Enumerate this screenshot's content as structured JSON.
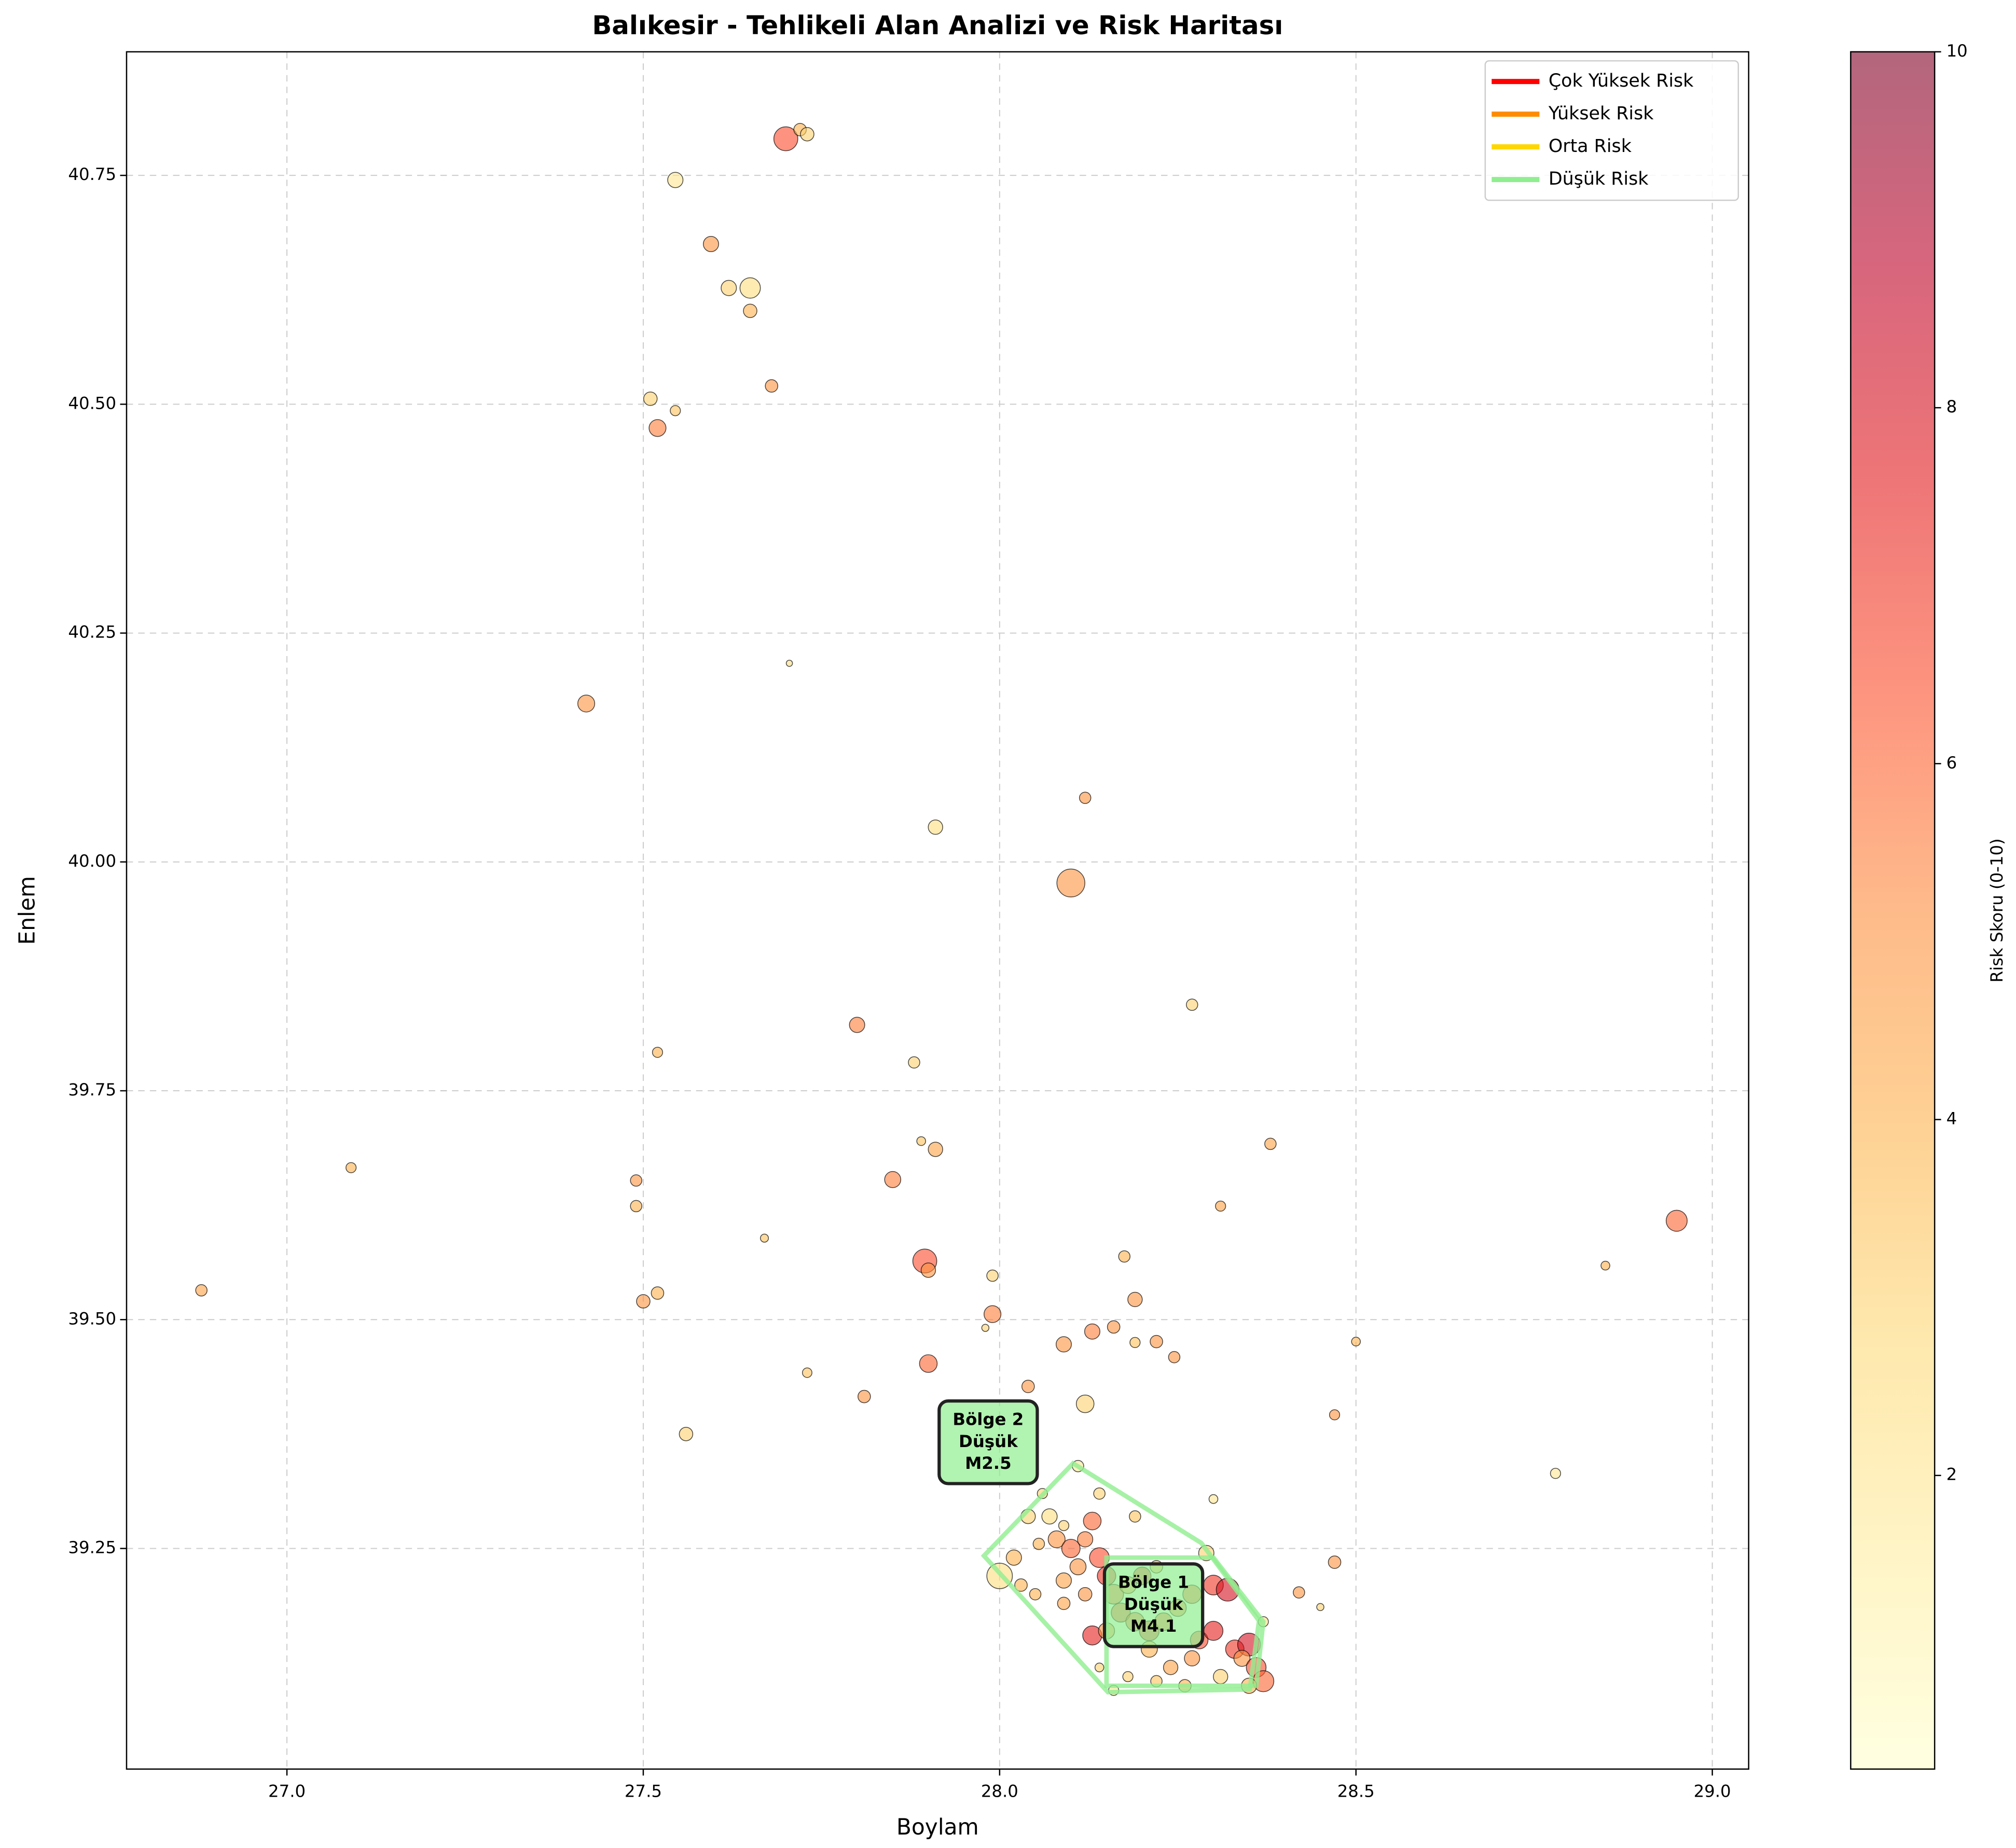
{
  "chart_data": {
    "type": "scatter",
    "title": "Balıkesir - Tehlikeli Alan Analizi ve Risk Haritası",
    "xlabel": "Boylam",
    "ylabel": "Enlem",
    "colorbar_label": "Risk Skoru (0-10)",
    "xlim": [
      26.775,
      29.051
    ],
    "ylim": [
      39.009,
      40.885
    ],
    "xticks": [
      {
        "value": 27,
        "label": "27.0"
      },
      {
        "value": 27.5,
        "label": "27.5"
      },
      {
        "value": 28,
        "label": "28.0"
      },
      {
        "value": 28.5,
        "label": "28.5"
      },
      {
        "value": 29,
        "label": "29.0"
      }
    ],
    "yticks": [
      39.25,
      {
        "value": 39.5,
        "label": "39.50"
      },
      39.75,
      {
        "value": 40,
        "label": "40.00"
      },
      40.25,
      {
        "value": 40.5,
        "label": "40.50"
      },
      40.75
    ],
    "clim": [
      0.35,
      10
    ],
    "cticks": [
      2,
      4,
      6,
      8,
      10
    ],
    "colormap": [
      "#ffffcc",
      "#ffeda0",
      "#fed976",
      "#feb24c",
      "#fd8d3c",
      "#fc4e2a",
      "#e31a1c",
      "#bd0026",
      "#800026"
    ],
    "grid": true,
    "x": [
      27.7,
      27.72,
      27.73,
      27.545,
      27.595,
      27.62,
      27.65,
      27.65,
      27.68,
      27.51,
      27.52,
      27.545,
      27.42,
      27.705,
      28.12,
      27.91,
      28.1,
      27.8,
      28.27,
      27.52,
      27.88,
      27.09,
      27.89,
      27.91,
      28.38,
      27.49,
      27.85,
      27.49,
      28.31,
      28.95,
      27.67,
      27.895,
      27.9,
      28.175,
      28.85,
      27.99,
      26.88,
      27.52,
      27.5,
      28.19,
      27.99,
      27.98,
      28.13,
      28.16,
      28.09,
      28.22,
      28.19,
      28.245,
      27.9,
      28.5,
      27.73,
      28.04,
      27.81,
      28.12,
      27.56,
      28.47,
      28.78,
      28.3,
      28.47,
      28.42,
      28.45,
      28.0,
      28.02,
      28.04,
      28.07,
      28.08,
      28.1,
      28.11,
      28.09,
      28.12,
      28.13,
      28.14,
      28.15,
      28.16,
      28.18,
      28.2,
      28.17,
      28.13,
      28.15,
      28.19,
      28.21,
      28.23,
      28.25,
      28.27,
      28.3,
      28.32,
      28.29,
      28.28,
      28.3,
      28.33,
      28.35,
      28.34,
      28.36,
      28.37,
      28.35,
      28.31,
      28.26,
      28.22,
      28.18,
      28.16,
      28.06,
      28.11,
      28.14,
      28.19,
      28.05,
      28.03,
      28.09,
      28.12,
      28.24,
      28.27,
      28.21,
      28.09,
      28.055,
      28.14,
      28.37,
      28.22
    ],
    "y": [
      40.79,
      40.8,
      40.795,
      40.745,
      40.675,
      40.627,
      40.627,
      40.602,
      40.52,
      40.506,
      40.474,
      40.493,
      40.173,
      40.217,
      40.07,
      40.038,
      39.977,
      39.822,
      39.844,
      39.792,
      39.781,
      39.666,
      39.695,
      39.686,
      39.692,
      39.652,
      39.653,
      39.624,
      39.624,
      39.608,
      39.589,
      39.564,
      39.554,
      39.569,
      39.559,
      39.548,
      39.532,
      39.529,
      39.52,
      39.522,
      39.506,
      39.491,
      39.487,
      39.492,
      39.473,
      39.476,
      39.475,
      39.459,
      39.452,
      39.476,
      39.442,
      39.427,
      39.416,
      39.408,
      39.375,
      39.396,
      39.332,
      39.304,
      39.235,
      39.202,
      39.186,
      39.22,
      39.24,
      39.285,
      39.285,
      39.26,
      39.25,
      39.23,
      39.215,
      39.26,
      39.28,
      39.24,
      39.22,
      39.2,
      39.21,
      39.22,
      39.18,
      39.155,
      39.16,
      39.17,
      39.16,
      39.17,
      39.185,
      39.2,
      39.21,
      39.205,
      39.245,
      39.15,
      39.16,
      39.14,
      39.145,
      39.13,
      39.12,
      39.105,
      39.1,
      39.11,
      39.1,
      39.105,
      39.11,
      39.095,
      39.31,
      39.34,
      39.31,
      39.285,
      39.2,
      39.21,
      39.19,
      39.2,
      39.12,
      39.13,
      39.14,
      39.275,
      39.255,
      39.12,
      39.17,
      39.23
    ],
    "sizes": [
      220,
      60,
      70,
      90,
      90,
      90,
      160,
      70,
      60,
      70,
      110,
      40,
      110,
      15,
      50,
      80,
      300,
      90,
      50,
      40,
      50,
      40,
      30,
      80,
      50,
      50,
      100,
      50,
      40,
      170,
      25,
      220,
      80,
      50,
      30,
      50,
      50,
      60,
      70,
      80,
      110,
      20,
      90,
      60,
      90,
      60,
      40,
      50,
      120,
      30,
      35,
      60,
      60,
      120,
      70,
      40,
      40,
      30,
      60,
      50,
      20,
      250,
      90,
      80,
      90,
      110,
      130,
      100,
      90,
      90,
      120,
      150,
      130,
      150,
      110,
      120,
      140,
      140,
      100,
      130,
      150,
      120,
      110,
      130,
      150,
      200,
      90,
      120,
      140,
      130,
      200,
      100,
      150,
      170,
      90,
      80,
      60,
      50,
      40,
      40,
      40,
      50,
      50,
      50,
      50,
      60,
      60,
      70,
      80,
      90,
      100,
      40,
      50,
      30,
      40,
      60
    ],
    "risk": [
      6.5,
      4,
      3,
      2,
      5,
      3,
      2.5,
      4,
      5,
      3,
      5.5,
      3.5,
      5,
      2.5,
      5,
      2.5,
      5,
      5.5,
      3,
      4,
      3,
      4,
      3.5,
      4.5,
      4.5,
      5,
      5.5,
      4,
      4.5,
      6,
      3.5,
      6.5,
      5,
      4,
      4,
      3,
      4.5,
      4,
      5,
      5,
      5.5,
      3,
      5.5,
      5,
      5,
      5,
      3.5,
      5,
      6,
      4,
      3.5,
      5,
      5,
      3,
      3,
      5,
      2,
      2,
      5,
      5,
      3,
      2.5,
      4,
      3,
      2.5,
      5,
      6,
      5,
      4.5,
      5.5,
      6,
      6.5,
      7,
      6,
      5,
      7,
      6.5,
      7.5,
      5,
      6,
      7,
      6,
      5.5,
      6,
      7,
      8,
      3,
      6.5,
      7.5,
      7,
      8,
      5,
      6.5,
      6,
      4,
      3,
      4,
      3.5,
      3,
      2,
      3,
      2,
      3,
      3.5,
      4,
      4,
      4.5,
      5,
      4.5,
      5,
      4,
      3,
      4,
      3,
      2.5,
      4
    ],
    "zones": [
      {
        "label": [
          "Bölge 1",
          "Düşük",
          "M4.1"
        ],
        "label_x": 28.216,
        "label_y": 39.188,
        "hull_x": [
          28.15,
          28.15,
          28.36,
          28.37,
          28.3
        ],
        "hull_y": [
          39.24,
          39.1,
          39.1,
          39.17,
          39.24
        ]
      },
      {
        "label": [
          "Bölge 2",
          "Düşük",
          "M2.5"
        ],
        "label_x": 27.984,
        "label_y": 39.366,
        "hull_x": [
          28.103,
          27.978,
          28.152,
          28.351,
          28.364,
          28.283
        ],
        "hull_y": [
          39.343,
          39.242,
          39.093,
          39.096,
          39.171,
          39.256
        ]
      }
    ],
    "zone_color": "#90ee90",
    "legend_position": "upper right",
    "legend": [
      {
        "name": "Çok Yüksek Risk",
        "color": "#ff0000"
      },
      {
        "name": "Yüksek Risk",
        "color": "#ff8c00"
      },
      {
        "name": "Orta Risk",
        "color": "#ffd700"
      },
      {
        "name": "Düşük Risk",
        "color": "#90ee90"
      }
    ]
  }
}
